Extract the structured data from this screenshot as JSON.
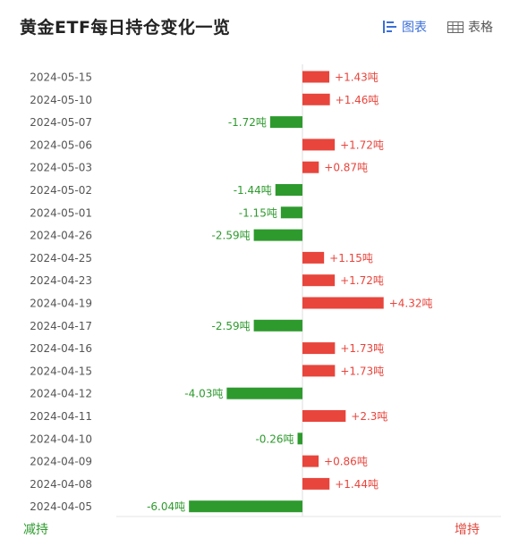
{
  "title": "黄金ETF每日持仓变化一览",
  "tabs": {
    "chart_label": "图表",
    "table_label": "表格"
  },
  "legend": {
    "decrease_label": "减持",
    "increase_label": "增持"
  },
  "colors": {
    "increase": "#e8453c",
    "decrease": "#2e9a2e",
    "active_tab": "#3b6fd8"
  },
  "chart_data": {
    "type": "bar",
    "orientation": "horizontal",
    "unit": "吨",
    "categories": [
      "2024-05-15",
      "2024-05-10",
      "2024-05-07",
      "2024-05-06",
      "2024-05-03",
      "2024-05-02",
      "2024-05-01",
      "2024-04-26",
      "2024-04-25",
      "2024-04-23",
      "2024-04-19",
      "2024-04-17",
      "2024-04-16",
      "2024-04-15",
      "2024-04-12",
      "2024-04-11",
      "2024-04-10",
      "2024-04-09",
      "2024-04-08",
      "2024-04-05"
    ],
    "values": [
      1.43,
      1.46,
      -1.72,
      1.72,
      0.87,
      -1.44,
      -1.15,
      -2.59,
      1.15,
      1.72,
      4.32,
      -2.59,
      1.73,
      1.73,
      -4.03,
      2.3,
      -0.26,
      0.86,
      1.44,
      -6.04
    ],
    "labels": [
      "+1.43吨",
      "+1.46吨",
      "-1.72吨",
      "+1.72吨",
      "+0.87吨",
      "-1.44吨",
      "-1.15吨",
      "-2.59吨",
      "+1.15吨",
      "+1.72吨",
      "+4.32吨",
      "-2.59吨",
      "+1.73吨",
      "+1.73吨",
      "-4.03吨",
      "+2.3吨",
      "-0.26吨",
      "+0.86吨",
      "+1.44吨",
      "-6.04吨"
    ],
    "xticks": [
      "−8",
      "−6",
      "−4",
      "−2",
      "0",
      "2",
      "4",
      "6"
    ],
    "xlim": [
      -8,
      6
    ],
    "grid": false
  }
}
